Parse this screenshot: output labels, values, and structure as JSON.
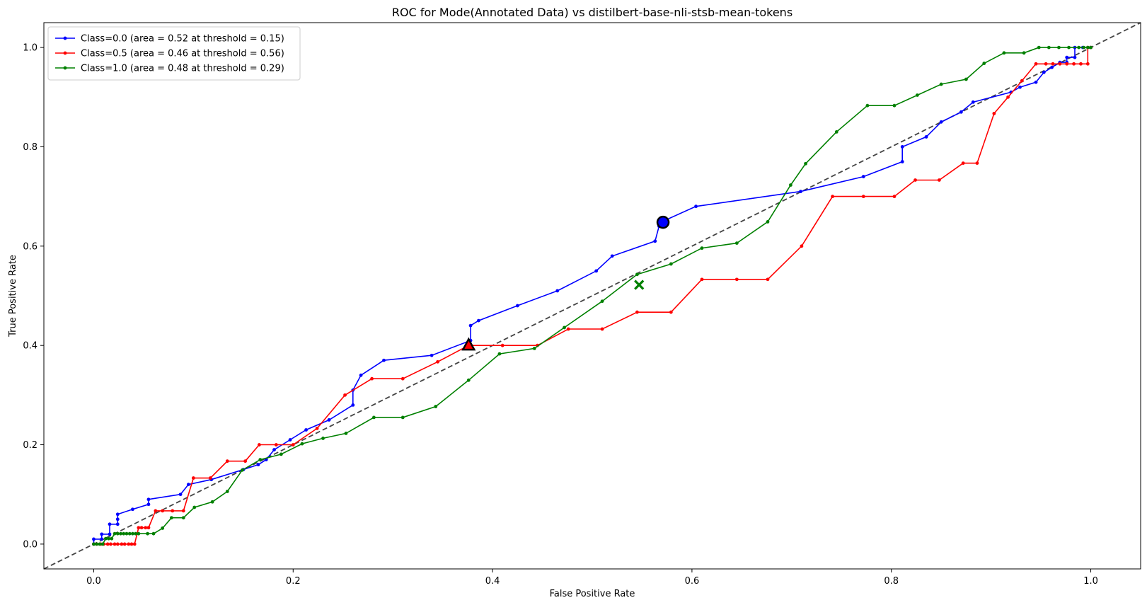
{
  "chart_data": {
    "type": "line",
    "title": "ROC for Mode(Annotated Data) vs distilbert-base-nli-stsb-mean-tokens",
    "xlabel": "False Positive Rate",
    "ylabel": "True Positive Rate",
    "xlim": [
      -0.05,
      1.05
    ],
    "ylim": [
      -0.05,
      1.05
    ],
    "xticks": [
      "0.0",
      "0.2",
      "0.4",
      "0.6",
      "0.8",
      "1.0"
    ],
    "yticks": [
      "0.0",
      "0.2",
      "0.4",
      "0.6",
      "0.8",
      "1.0"
    ],
    "grid": false,
    "legend_position": "top-left",
    "diagonal": {
      "x": [
        -0.05,
        1.05
      ],
      "y": [
        -0.05,
        1.05
      ],
      "color": "#444444",
      "style": "dashed"
    },
    "series": [
      {
        "name": "Class=0.0 (area = 0.52 at threshold = 0.15)",
        "color": "#0000ff",
        "x": [
          0.0,
          0.0,
          0.008,
          0.008,
          0.016,
          0.016,
          0.024,
          0.024,
          0.024,
          0.039,
          0.055,
          0.055,
          0.087,
          0.095,
          0.118,
          0.15,
          0.165,
          0.173,
          0.181,
          0.197,
          0.213,
          0.236,
          0.26,
          0.26,
          0.268,
          0.291,
          0.339,
          0.378,
          0.378,
          0.386,
          0.425,
          0.465,
          0.504,
          0.52,
          0.563,
          0.567,
          0.571,
          0.604,
          0.709,
          0.772,
          0.811,
          0.811,
          0.835,
          0.85,
          0.87,
          0.882,
          0.92,
          0.929,
          0.945,
          0.953,
          0.961,
          0.969,
          0.976,
          0.976,
          0.984,
          0.984,
          0.992,
          1.0
        ],
        "y": [
          0.0,
          0.01,
          0.01,
          0.02,
          0.02,
          0.04,
          0.04,
          0.05,
          0.06,
          0.07,
          0.08,
          0.09,
          0.1,
          0.12,
          0.13,
          0.15,
          0.16,
          0.17,
          0.19,
          0.21,
          0.23,
          0.25,
          0.28,
          0.31,
          0.34,
          0.37,
          0.38,
          0.41,
          0.44,
          0.45,
          0.48,
          0.51,
          0.55,
          0.58,
          0.61,
          0.64,
          0.65,
          0.68,
          0.71,
          0.74,
          0.77,
          0.8,
          0.82,
          0.85,
          0.87,
          0.89,
          0.91,
          0.92,
          0.93,
          0.95,
          0.96,
          0.97,
          0.97,
          0.98,
          0.98,
          1.0,
          1.0,
          1.0
        ],
        "optimal_point": {
          "x": 0.571,
          "y": 0.648,
          "marker": "circle"
        }
      },
      {
        "name": "Class=0.5 (area = 0.46 at threshold = 0.56)",
        "color": "#ff0000",
        "x": [
          0.0,
          0.003,
          0.007,
          0.01,
          0.014,
          0.017,
          0.021,
          0.024,
          0.028,
          0.031,
          0.035,
          0.038,
          0.041,
          0.045,
          0.048,
          0.052,
          0.055,
          0.062,
          0.069,
          0.079,
          0.09,
          0.1,
          0.117,
          0.134,
          0.152,
          0.166,
          0.183,
          0.2,
          0.224,
          0.252,
          0.279,
          0.31,
          0.345,
          0.376,
          0.41,
          0.445,
          0.476,
          0.51,
          0.545,
          0.579,
          0.61,
          0.645,
          0.676,
          0.71,
          0.741,
          0.772,
          0.803,
          0.824,
          0.848,
          0.872,
          0.886,
          0.903,
          0.917,
          0.931,
          0.945,
          0.955,
          0.962,
          0.969,
          0.976,
          0.983,
          0.99,
          0.997,
          0.997,
          1.0
        ],
        "y": [
          0.0,
          0.0,
          0.0,
          0.0,
          0.0,
          0.0,
          0.0,
          0.0,
          0.0,
          0.0,
          0.0,
          0.0,
          0.0,
          0.033,
          0.033,
          0.033,
          0.033,
          0.067,
          0.067,
          0.067,
          0.067,
          0.133,
          0.133,
          0.167,
          0.167,
          0.2,
          0.2,
          0.2,
          0.233,
          0.3,
          0.333,
          0.333,
          0.367,
          0.4,
          0.4,
          0.4,
          0.433,
          0.433,
          0.467,
          0.467,
          0.533,
          0.533,
          0.533,
          0.6,
          0.7,
          0.7,
          0.7,
          0.733,
          0.733,
          0.767,
          0.767,
          0.867,
          0.9,
          0.933,
          0.967,
          0.967,
          0.967,
          0.967,
          0.967,
          0.967,
          0.967,
          0.967,
          1.0,
          1.0
        ],
        "optimal_point": {
          "x": 0.376,
          "y": 0.4,
          "marker": "triangle"
        }
      },
      {
        "name": "Class=1.0 (area = 0.48 at threshold = 0.29)",
        "color": "#008000",
        "x": [
          0.0,
          0.003,
          0.006,
          0.009,
          0.012,
          0.015,
          0.018,
          0.021,
          0.024,
          0.027,
          0.03,
          0.033,
          0.036,
          0.039,
          0.042,
          0.045,
          0.054,
          0.06,
          0.069,
          0.078,
          0.09,
          0.101,
          0.119,
          0.134,
          0.149,
          0.167,
          0.188,
          0.209,
          0.23,
          0.253,
          0.281,
          0.31,
          0.343,
          0.376,
          0.407,
          0.442,
          0.472,
          0.51,
          0.545,
          0.579,
          0.61,
          0.645,
          0.676,
          0.699,
          0.714,
          0.745,
          0.776,
          0.803,
          0.826,
          0.85,
          0.875,
          0.893,
          0.913,
          0.933,
          0.948,
          0.958,
          0.968,
          0.978,
          0.988,
          0.993,
          0.997,
          1.0
        ],
        "y": [
          0.0,
          0.0,
          0.0,
          0.0,
          0.011,
          0.011,
          0.011,
          0.021,
          0.021,
          0.021,
          0.021,
          0.021,
          0.021,
          0.021,
          0.021,
          0.021,
          0.021,
          0.021,
          0.032,
          0.053,
          0.053,
          0.074,
          0.085,
          0.106,
          0.149,
          0.17,
          0.181,
          0.202,
          0.213,
          0.223,
          0.255,
          0.255,
          0.277,
          0.33,
          0.383,
          0.394,
          0.436,
          0.489,
          0.543,
          0.564,
          0.596,
          0.606,
          0.649,
          0.723,
          0.766,
          0.83,
          0.883,
          0.883,
          0.904,
          0.926,
          0.936,
          0.968,
          0.989,
          0.989,
          1.0,
          1.0,
          1.0,
          1.0,
          1.0,
          1.0,
          1.0,
          1.0
        ],
        "optimal_point": {
          "x": 0.547,
          "y": 0.522,
          "marker": "x"
        }
      }
    ]
  }
}
